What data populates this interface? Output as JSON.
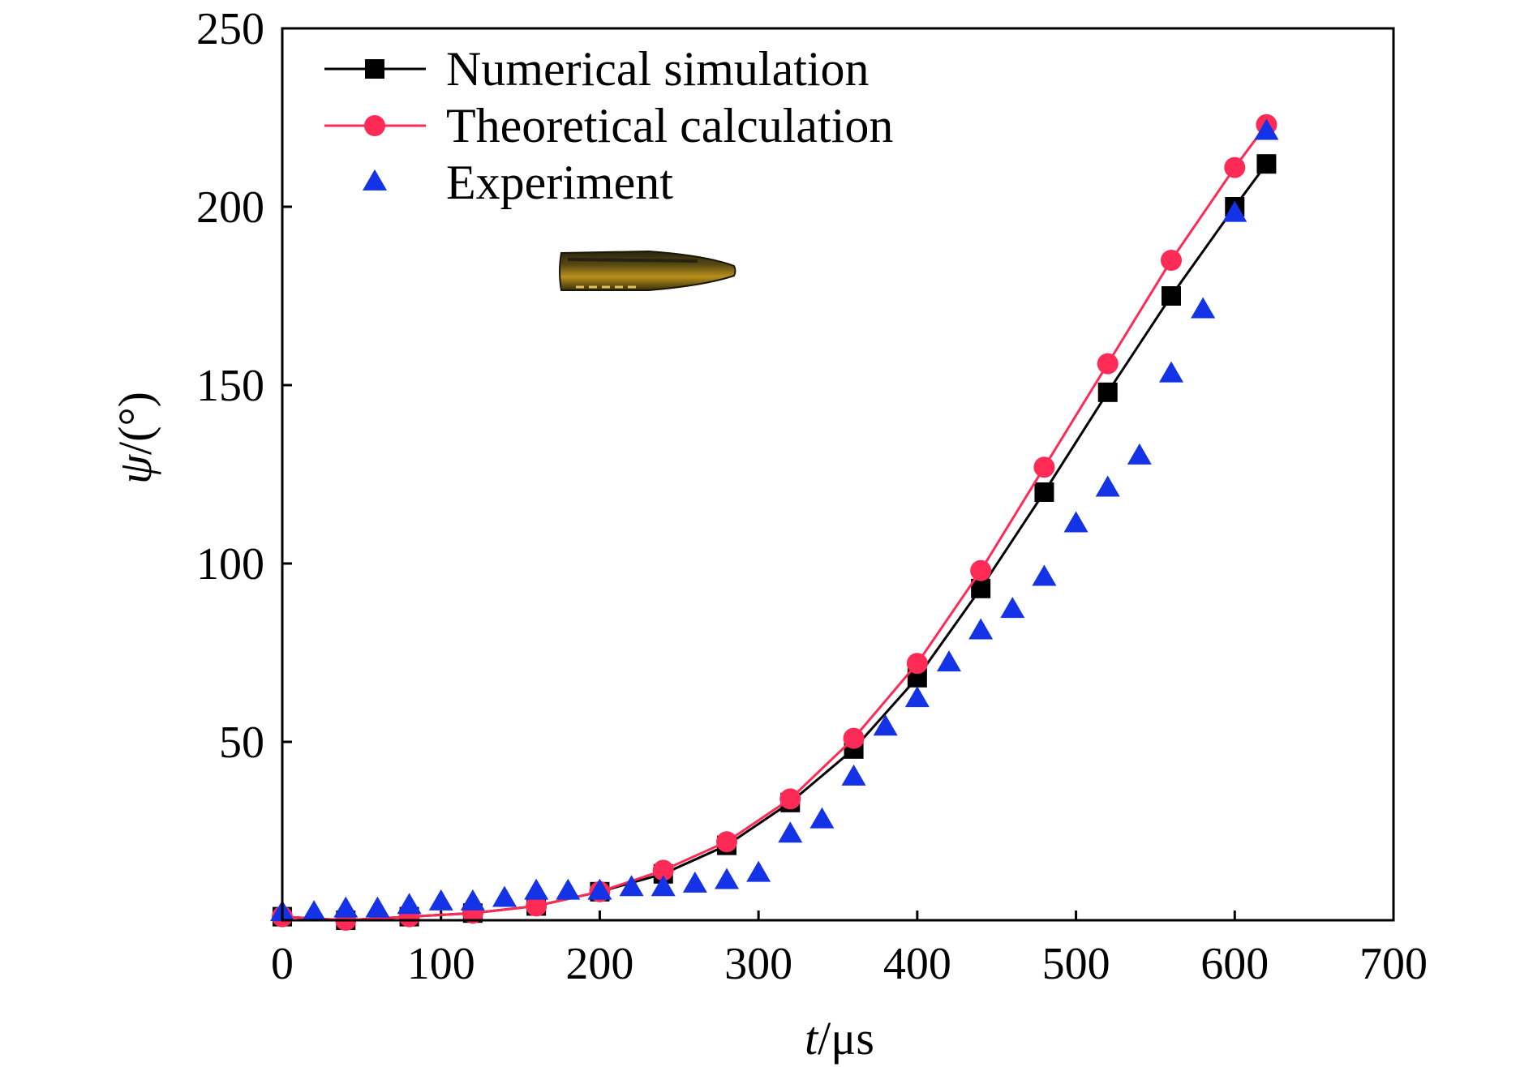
{
  "chart_data": {
    "type": "line",
    "title": "",
    "xlabel": {
      "var": "t",
      "unit": "/μs"
    },
    "ylabel": {
      "var": "ψ",
      "unit": "/(°)"
    },
    "xlim": [
      0,
      700
    ],
    "ylim": [
      0,
      250
    ],
    "xticks": [
      0,
      100,
      200,
      300,
      400,
      500,
      600,
      700
    ],
    "yticks": [
      50,
      100,
      150,
      200,
      250
    ],
    "grid": false,
    "legend_position": "top-left",
    "series": [
      {
        "name": "Numerical simulation",
        "style": "line+square",
        "color": "#000000",
        "x": [
          0,
          40,
          80,
          120,
          160,
          200,
          240,
          280,
          320,
          360,
          400,
          440,
          480,
          520,
          560,
          600,
          620
        ],
        "y": [
          1,
          0,
          1,
          2,
          4,
          8,
          13,
          21,
          33,
          48,
          68,
          93,
          120,
          148,
          175,
          200,
          212
        ]
      },
      {
        "name": "Theoretical calculation",
        "style": "line+circle",
        "color": "#ff2a55",
        "x": [
          0,
          40,
          80,
          120,
          160,
          200,
          240,
          280,
          320,
          360,
          400,
          440,
          480,
          520,
          560,
          600,
          620
        ],
        "y": [
          1,
          0,
          1,
          2,
          4,
          8,
          14,
          22,
          34,
          51,
          72,
          98,
          127,
          156,
          185,
          211,
          223
        ]
      },
      {
        "name": "Experiment",
        "style": "triangle",
        "color": "#1432e6",
        "x": [
          0,
          20,
          40,
          60,
          80,
          100,
          120,
          140,
          160,
          180,
          200,
          220,
          240,
          260,
          280,
          300,
          320,
          340,
          360,
          380,
          400,
          420,
          440,
          460,
          480,
          500,
          520,
          540,
          560,
          580,
          600,
          620
        ],
        "y": [
          2,
          2,
          3,
          3,
          4,
          5,
          5,
          6,
          8,
          8,
          8,
          9,
          9,
          10,
          11,
          13,
          24,
          28,
          40,
          54,
          62,
          72,
          81,
          87,
          96,
          111,
          121,
          130,
          153,
          171,
          198,
          221
        ]
      }
    ]
  }
}
